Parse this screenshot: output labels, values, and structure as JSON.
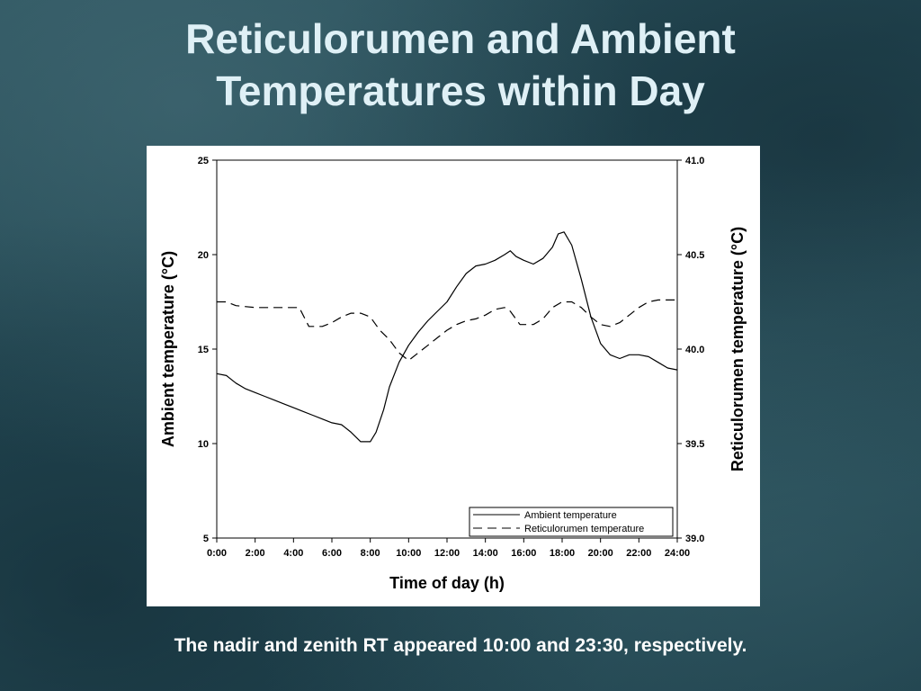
{
  "slide": {
    "title_line1": "Reticulorumen and Ambient",
    "title_line2": "Temperatures within Day",
    "caption": "The nadir and zenith RT appeared 10:00 and 23:30, respectively."
  },
  "chart_data": {
    "type": "line",
    "title": "Reticulorumen and Ambient Temperatures within Day",
    "xlabel": "Time of day (h)",
    "ylabel": "Ambient temperature (°C)",
    "y2label": "Reticulorumen temperature (°C)",
    "xlim": [
      0,
      24
    ],
    "ylim": [
      5,
      25
    ],
    "y2lim": [
      39.0,
      41.0
    ],
    "x_ticks": [
      0,
      2,
      4,
      6,
      8,
      10,
      12,
      14,
      16,
      18,
      20,
      22,
      24
    ],
    "x_tick_labels": [
      "0:00",
      "2:00",
      "4:00",
      "6:00",
      "8:00",
      "10:00",
      "12:00",
      "14:00",
      "16:00",
      "18:00",
      "20:00",
      "22:00",
      "24:00"
    ],
    "y_ticks": [
      5,
      10,
      15,
      20,
      25
    ],
    "y_tick_labels": [
      "5",
      "10",
      "15",
      "20",
      "25"
    ],
    "y2_ticks": [
      39.0,
      39.5,
      40.0,
      40.5,
      41.0
    ],
    "y2_tick_labels": [
      "39.0",
      "39.5",
      "40.0",
      "40.5",
      "41.0"
    ],
    "legend_position": "bottom-right",
    "grid": false,
    "series": [
      {
        "name": "Ambient temperature",
        "axis": "left",
        "style": "solid",
        "color": "#000000",
        "points": [
          [
            0,
            13.7
          ],
          [
            0.5,
            13.6
          ],
          [
            1,
            13.2
          ],
          [
            1.5,
            12.9
          ],
          [
            2,
            12.7
          ],
          [
            2.5,
            12.5
          ],
          [
            3,
            12.3
          ],
          [
            3.5,
            12.1
          ],
          [
            4,
            11.9
          ],
          [
            4.5,
            11.7
          ],
          [
            5,
            11.5
          ],
          [
            5.5,
            11.3
          ],
          [
            6,
            11.1
          ],
          [
            6.5,
            11.0
          ],
          [
            7,
            10.6
          ],
          [
            7.5,
            10.1
          ],
          [
            8,
            10.1
          ],
          [
            8.3,
            10.6
          ],
          [
            8.7,
            11.8
          ],
          [
            9,
            13.0
          ],
          [
            9.5,
            14.3
          ],
          [
            10,
            15.2
          ],
          [
            10.5,
            15.9
          ],
          [
            11,
            16.5
          ],
          [
            11.5,
            17.0
          ],
          [
            12,
            17.5
          ],
          [
            12.5,
            18.3
          ],
          [
            13,
            19.0
          ],
          [
            13.5,
            19.4
          ],
          [
            14,
            19.5
          ],
          [
            14.5,
            19.7
          ],
          [
            15,
            20.0
          ],
          [
            15.3,
            20.2
          ],
          [
            15.6,
            19.9
          ],
          [
            16,
            19.7
          ],
          [
            16.5,
            19.5
          ],
          [
            17,
            19.8
          ],
          [
            17.5,
            20.4
          ],
          [
            17.8,
            21.1
          ],
          [
            18.1,
            21.2
          ],
          [
            18.5,
            20.5
          ],
          [
            19,
            18.7
          ],
          [
            19.5,
            16.7
          ],
          [
            20,
            15.3
          ],
          [
            20.5,
            14.7
          ],
          [
            21,
            14.5
          ],
          [
            21.5,
            14.7
          ],
          [
            22,
            14.7
          ],
          [
            22.5,
            14.6
          ],
          [
            23,
            14.3
          ],
          [
            23.5,
            14.0
          ],
          [
            24,
            13.9
          ]
        ]
      },
      {
        "name": "Reticulorumen temperature",
        "axis": "right",
        "style": "dashed",
        "color": "#000000",
        "points": [
          [
            0,
            40.25
          ],
          [
            0.5,
            40.25
          ],
          [
            1,
            40.23
          ],
          [
            2,
            40.22
          ],
          [
            3,
            40.22
          ],
          [
            4,
            40.22
          ],
          [
            4.3,
            40.22
          ],
          [
            4.8,
            40.12
          ],
          [
            5.5,
            40.12
          ],
          [
            6,
            40.14
          ],
          [
            6.5,
            40.17
          ],
          [
            7,
            40.19
          ],
          [
            7.5,
            40.19
          ],
          [
            8,
            40.17
          ],
          [
            8.5,
            40.1
          ],
          [
            9,
            40.05
          ],
          [
            9.5,
            39.98
          ],
          [
            10,
            39.94
          ],
          [
            10.5,
            39.98
          ],
          [
            11,
            40.02
          ],
          [
            11.5,
            40.06
          ],
          [
            12,
            40.1
          ],
          [
            12.5,
            40.13
          ],
          [
            13,
            40.15
          ],
          [
            13.5,
            40.16
          ],
          [
            14,
            40.18
          ],
          [
            14.5,
            40.21
          ],
          [
            15,
            40.22
          ],
          [
            15.3,
            40.2
          ],
          [
            15.8,
            40.13
          ],
          [
            16.5,
            40.13
          ],
          [
            17,
            40.16
          ],
          [
            17.5,
            40.22
          ],
          [
            18,
            40.25
          ],
          [
            18.5,
            40.25
          ],
          [
            19,
            40.22
          ],
          [
            19.5,
            40.17
          ],
          [
            20,
            40.13
          ],
          [
            20.5,
            40.12
          ],
          [
            21,
            40.14
          ],
          [
            21.5,
            40.18
          ],
          [
            22,
            40.22
          ],
          [
            22.5,
            40.25
          ],
          [
            23,
            40.26
          ],
          [
            23.5,
            40.26
          ],
          [
            24,
            40.26
          ]
        ]
      }
    ]
  }
}
